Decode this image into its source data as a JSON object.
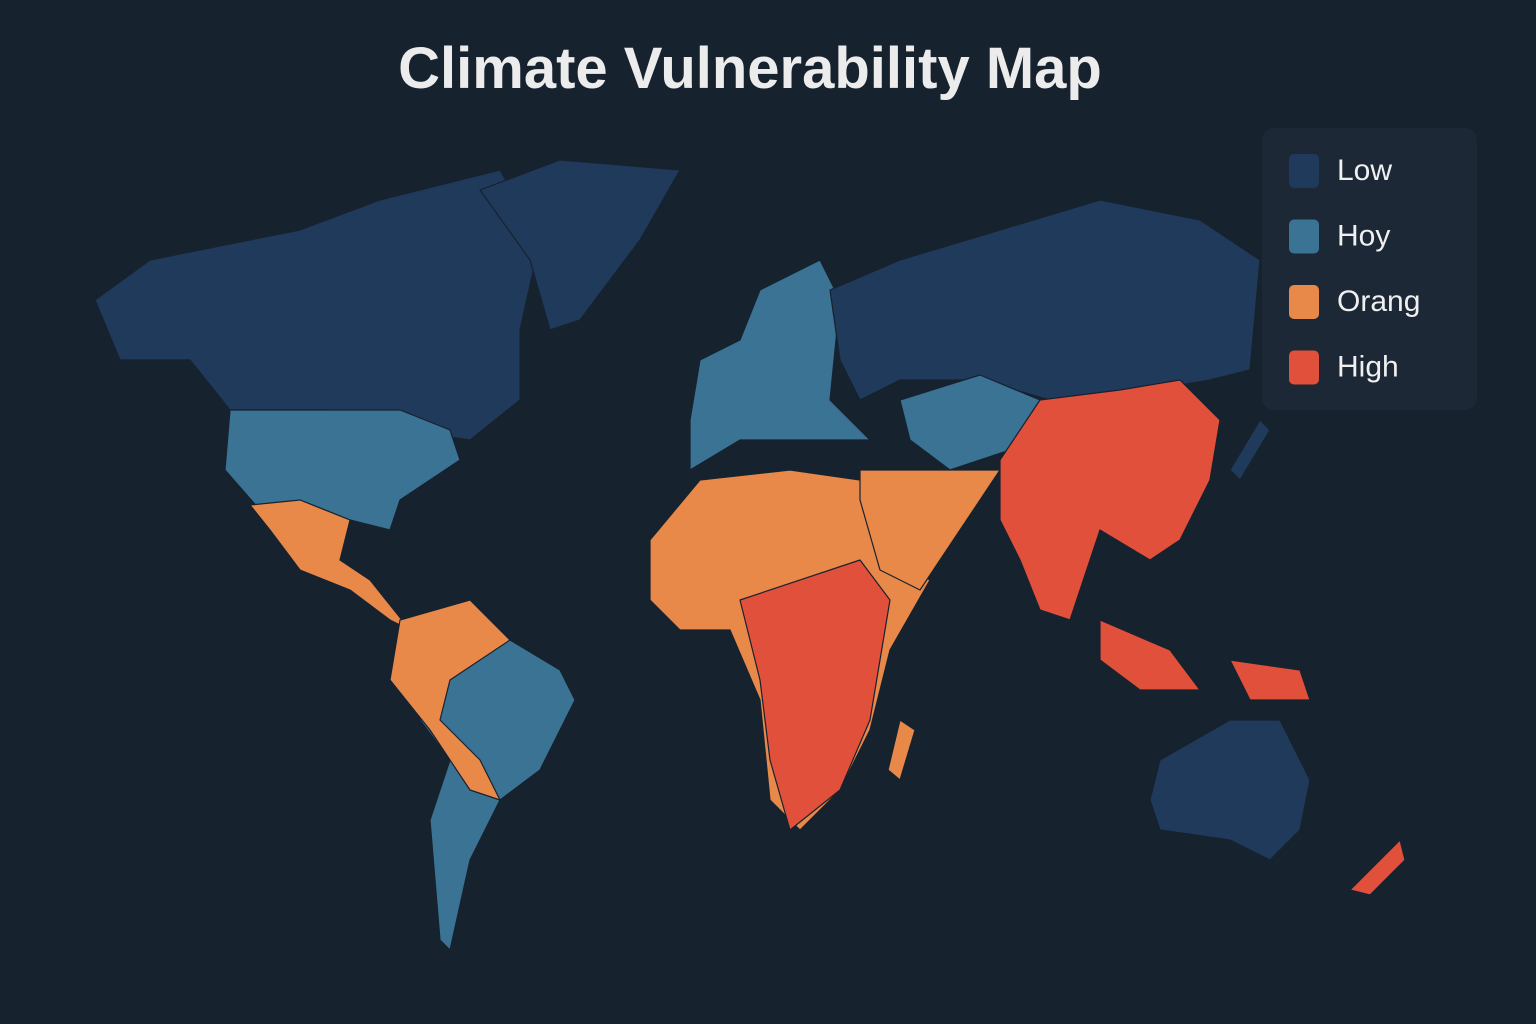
{
  "title": "Climate Vulnerability Map",
  "legend": [
    {
      "label": "Low",
      "color": "#1f3a5a"
    },
    {
      "label": "Hoy",
      "color": "#3a7394"
    },
    {
      "label": "Orang",
      "color": "#e8894a"
    },
    {
      "label": "High",
      "color": "#e0503a"
    }
  ]
}
